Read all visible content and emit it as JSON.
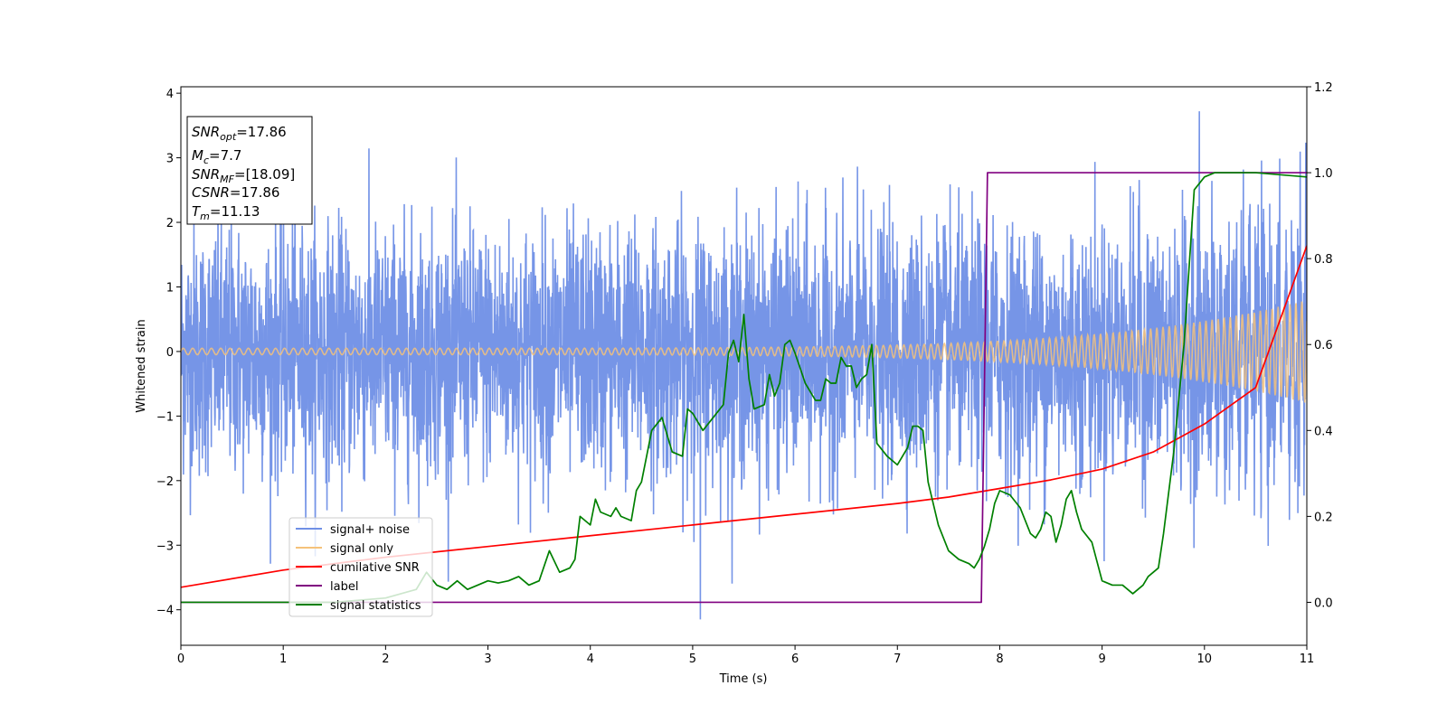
{
  "chart_data": {
    "type": "line",
    "xlabel": "Time (s)",
    "ylabel_left": "Whitened strain",
    "ylabel_right": "",
    "xlim": [
      0,
      11
    ],
    "ylim_left": [
      -4.55,
      4.1
    ],
    "ylim_right": [
      -0.1,
      1.2
    ],
    "x_ticks": [
      0,
      1,
      2,
      3,
      4,
      5,
      6,
      7,
      8,
      9,
      10,
      11
    ],
    "y_left_ticks": [
      -4,
      -3,
      -2,
      -1,
      0,
      1,
      2,
      3,
      4
    ],
    "y_right_ticks": [
      0.0,
      0.2,
      0.4,
      0.6,
      0.8,
      1.0,
      1.2
    ],
    "y_right_tick_labels": [
      "0.0",
      "0.2",
      "0.4",
      "0.6",
      "0.8",
      "1.0",
      "1.2"
    ],
    "grid": false,
    "legend_position": "lower-left",
    "annotation": {
      "lines": [
        {
          "base": "SNR",
          "sub": "opt",
          "value": "=17.86"
        },
        {
          "base": "M",
          "sub": "c",
          "value": "=7.7"
        },
        {
          "base": "SNR",
          "sub": "MF",
          "value": "=[18.09]"
        },
        {
          "base": "CSNR",
          "sub": "",
          "value": "=17.86"
        },
        {
          "base": "T",
          "sub": "m",
          "value": "=11.13"
        }
      ]
    },
    "series": [
      {
        "name": "signal+ noise",
        "color": "#6f8fe6",
        "axis": "left",
        "kind": "noise",
        "sigma": 0.95,
        "extreme_min": -4.15,
        "extreme_max": 3.72
      },
      {
        "name": "signal only",
        "color": "#f5c27a",
        "axis": "left",
        "kind": "chirp",
        "amplitude_start": 0.05,
        "amplitude_end": 0.8
      },
      {
        "name": "cumilative SNR",
        "color": "#ff0000",
        "axis": "right",
        "x": [
          0,
          1,
          2,
          3,
          4,
          5,
          6,
          7,
          7.5,
          8,
          8.5,
          9,
          9.5,
          10,
          10.5,
          11
        ],
        "values": [
          0.035,
          0.075,
          0.105,
          0.13,
          0.155,
          0.18,
          0.205,
          0.23,
          0.245,
          0.265,
          0.285,
          0.31,
          0.35,
          0.415,
          0.5,
          0.83
        ]
      },
      {
        "name": "label",
        "color": "#800080",
        "axis": "right",
        "x": [
          0,
          7.82,
          7.88,
          11
        ],
        "values": [
          0.0,
          0.0,
          1.0,
          1.0
        ]
      },
      {
        "name": "signal statistics",
        "color": "#008000",
        "axis": "right",
        "x": [
          0,
          1.5,
          2.0,
          2.3,
          2.4,
          2.5,
          2.6,
          2.7,
          2.8,
          2.9,
          3.0,
          3.1,
          3.2,
          3.3,
          3.4,
          3.5,
          3.6,
          3.7,
          3.8,
          3.85,
          3.9,
          4.0,
          4.05,
          4.1,
          4.2,
          4.25,
          4.3,
          4.4,
          4.45,
          4.5,
          4.6,
          4.7,
          4.8,
          4.9,
          4.95,
          5.0,
          5.1,
          5.2,
          5.3,
          5.35,
          5.4,
          5.45,
          5.5,
          5.55,
          5.6,
          5.7,
          5.75,
          5.8,
          5.85,
          5.9,
          5.95,
          6.0,
          6.1,
          6.2,
          6.25,
          6.3,
          6.35,
          6.4,
          6.45,
          6.5,
          6.55,
          6.6,
          6.65,
          6.7,
          6.75,
          6.8,
          6.9,
          7.0,
          7.05,
          7.1,
          7.15,
          7.2,
          7.25,
          7.3,
          7.4,
          7.5,
          7.6,
          7.7,
          7.75,
          7.8,
          7.85,
          7.9,
          7.95,
          8.0,
          8.1,
          8.2,
          8.3,
          8.35,
          8.4,
          8.45,
          8.5,
          8.55,
          8.6,
          8.65,
          8.7,
          8.75,
          8.8,
          8.9,
          9.0,
          9.1,
          9.2,
          9.3,
          9.35,
          9.4,
          9.45,
          9.5,
          9.55,
          9.6,
          9.7,
          9.8,
          9.9,
          10.0,
          10.1,
          10.2,
          10.5,
          11
        ],
        "values": [
          0.0,
          0.0,
          0.01,
          0.03,
          0.07,
          0.04,
          0.03,
          0.05,
          0.03,
          0.04,
          0.05,
          0.045,
          0.05,
          0.06,
          0.04,
          0.05,
          0.12,
          0.07,
          0.08,
          0.1,
          0.2,
          0.18,
          0.24,
          0.21,
          0.2,
          0.22,
          0.2,
          0.19,
          0.26,
          0.28,
          0.4,
          0.43,
          0.35,
          0.34,
          0.45,
          0.44,
          0.4,
          0.43,
          0.46,
          0.58,
          0.61,
          0.56,
          0.67,
          0.52,
          0.45,
          0.46,
          0.53,
          0.48,
          0.51,
          0.6,
          0.61,
          0.58,
          0.51,
          0.47,
          0.47,
          0.52,
          0.51,
          0.51,
          0.57,
          0.55,
          0.55,
          0.5,
          0.52,
          0.53,
          0.6,
          0.37,
          0.34,
          0.32,
          0.34,
          0.36,
          0.41,
          0.41,
          0.4,
          0.28,
          0.18,
          0.12,
          0.1,
          0.09,
          0.08,
          0.1,
          0.13,
          0.17,
          0.23,
          0.26,
          0.25,
          0.22,
          0.16,
          0.15,
          0.17,
          0.21,
          0.2,
          0.14,
          0.18,
          0.24,
          0.26,
          0.21,
          0.17,
          0.14,
          0.05,
          0.04,
          0.04,
          0.02,
          0.03,
          0.04,
          0.06,
          0.07,
          0.08,
          0.16,
          0.35,
          0.6,
          0.96,
          0.99,
          1.0,
          1.0,
          1.0,
          0.99
        ]
      }
    ]
  }
}
